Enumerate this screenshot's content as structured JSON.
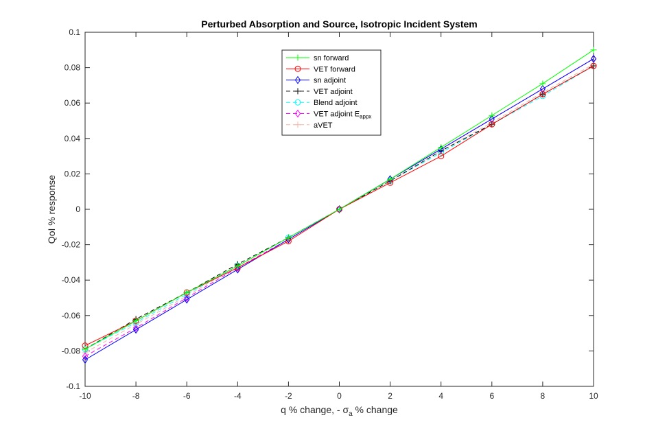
{
  "chart_data": {
    "type": "line",
    "title": "Perturbed Absorption and Source, Isotropic Incident System",
    "xlabel": "q % change, - σ",
    "xlabel_subscript": "a",
    "xlabel_suffix": " % change",
    "ylabel": "QoI % response",
    "xlim": [
      -10,
      10
    ],
    "ylim": [
      -0.1,
      0.1
    ],
    "x_ticks": [
      -10,
      -8,
      -6,
      -4,
      -2,
      0,
      2,
      4,
      6,
      8,
      10
    ],
    "x_tick_labels": [
      "-10",
      "-8",
      "-6",
      "-4",
      "-2",
      "0",
      "2",
      "4",
      "6",
      "8",
      "10"
    ],
    "y_ticks": [
      -0.1,
      -0.08,
      -0.06,
      -0.04,
      -0.02,
      0,
      0.02,
      0.04,
      0.06,
      0.08,
      0.1
    ],
    "y_tick_labels": [
      "-0.1",
      "-0.08",
      "-0.06",
      "-0.04",
      "-0.02",
      "0",
      "0.02",
      "0.04",
      "0.06",
      "0.08",
      "0.1"
    ],
    "grid": false,
    "legend_position": "top-center",
    "x": [
      -10,
      -8,
      -6,
      -4,
      -2,
      0,
      2,
      4,
      6,
      8,
      10
    ],
    "series": [
      {
        "name": "sn forward",
        "color": "#00ff00",
        "line_style": "solid",
        "marker": "plus",
        "values": [
          -0.079,
          -0.063,
          -0.047,
          -0.032,
          -0.016,
          0,
          0.017,
          0.035,
          0.053,
          0.071,
          0.09
        ]
      },
      {
        "name": "VET forward",
        "color": "#ff0000",
        "line_style": "solid",
        "marker": "circle",
        "values": [
          -0.077,
          -0.063,
          -0.047,
          -0.033,
          -0.018,
          0,
          0.015,
          0.03,
          0.048,
          0.065,
          0.081
        ]
      },
      {
        "name": "sn adjoint",
        "color": "#0000ff",
        "line_style": "solid",
        "marker": "diamond",
        "values": [
          -0.085,
          -0.068,
          -0.051,
          -0.034,
          -0.017,
          0,
          0.017,
          0.034,
          0.051,
          0.068,
          0.085
        ]
      },
      {
        "name": "VET adjoint",
        "color": "#000000",
        "line_style": "dashed",
        "marker": "plus",
        "values": [
          -0.079,
          -0.062,
          -0.047,
          -0.031,
          -0.016,
          0,
          0.016,
          0.033,
          0.048,
          0.065,
          0.081
        ]
      },
      {
        "name": "Blend adjoint",
        "color": "#00ffff",
        "line_style": "dashed",
        "marker": "circle",
        "values": [
          -0.079,
          -0.064,
          -0.048,
          -0.032,
          -0.016,
          0,
          0.016,
          0.032,
          0.048,
          0.064,
          0.081
        ]
      },
      {
        "name": "VET adjoint E",
        "name_subscript": "appx",
        "color": "#ff00ff",
        "line_style": "dashed",
        "marker": "diamond",
        "values": [
          -0.083,
          -0.067,
          -0.05,
          -0.033,
          -0.017,
          0,
          0.017,
          0.034,
          0.051,
          0.068,
          0.085
        ]
      },
      {
        "name": "aVET",
        "color": "#f4b6a4",
        "label_color": "#a0a0a0",
        "line_style": "dashed",
        "marker": "plus",
        "values": [
          -0.081,
          -0.065,
          -0.049,
          -0.032,
          -0.016,
          0,
          0.016,
          0.033,
          0.049,
          0.066,
          0.082
        ]
      }
    ]
  }
}
